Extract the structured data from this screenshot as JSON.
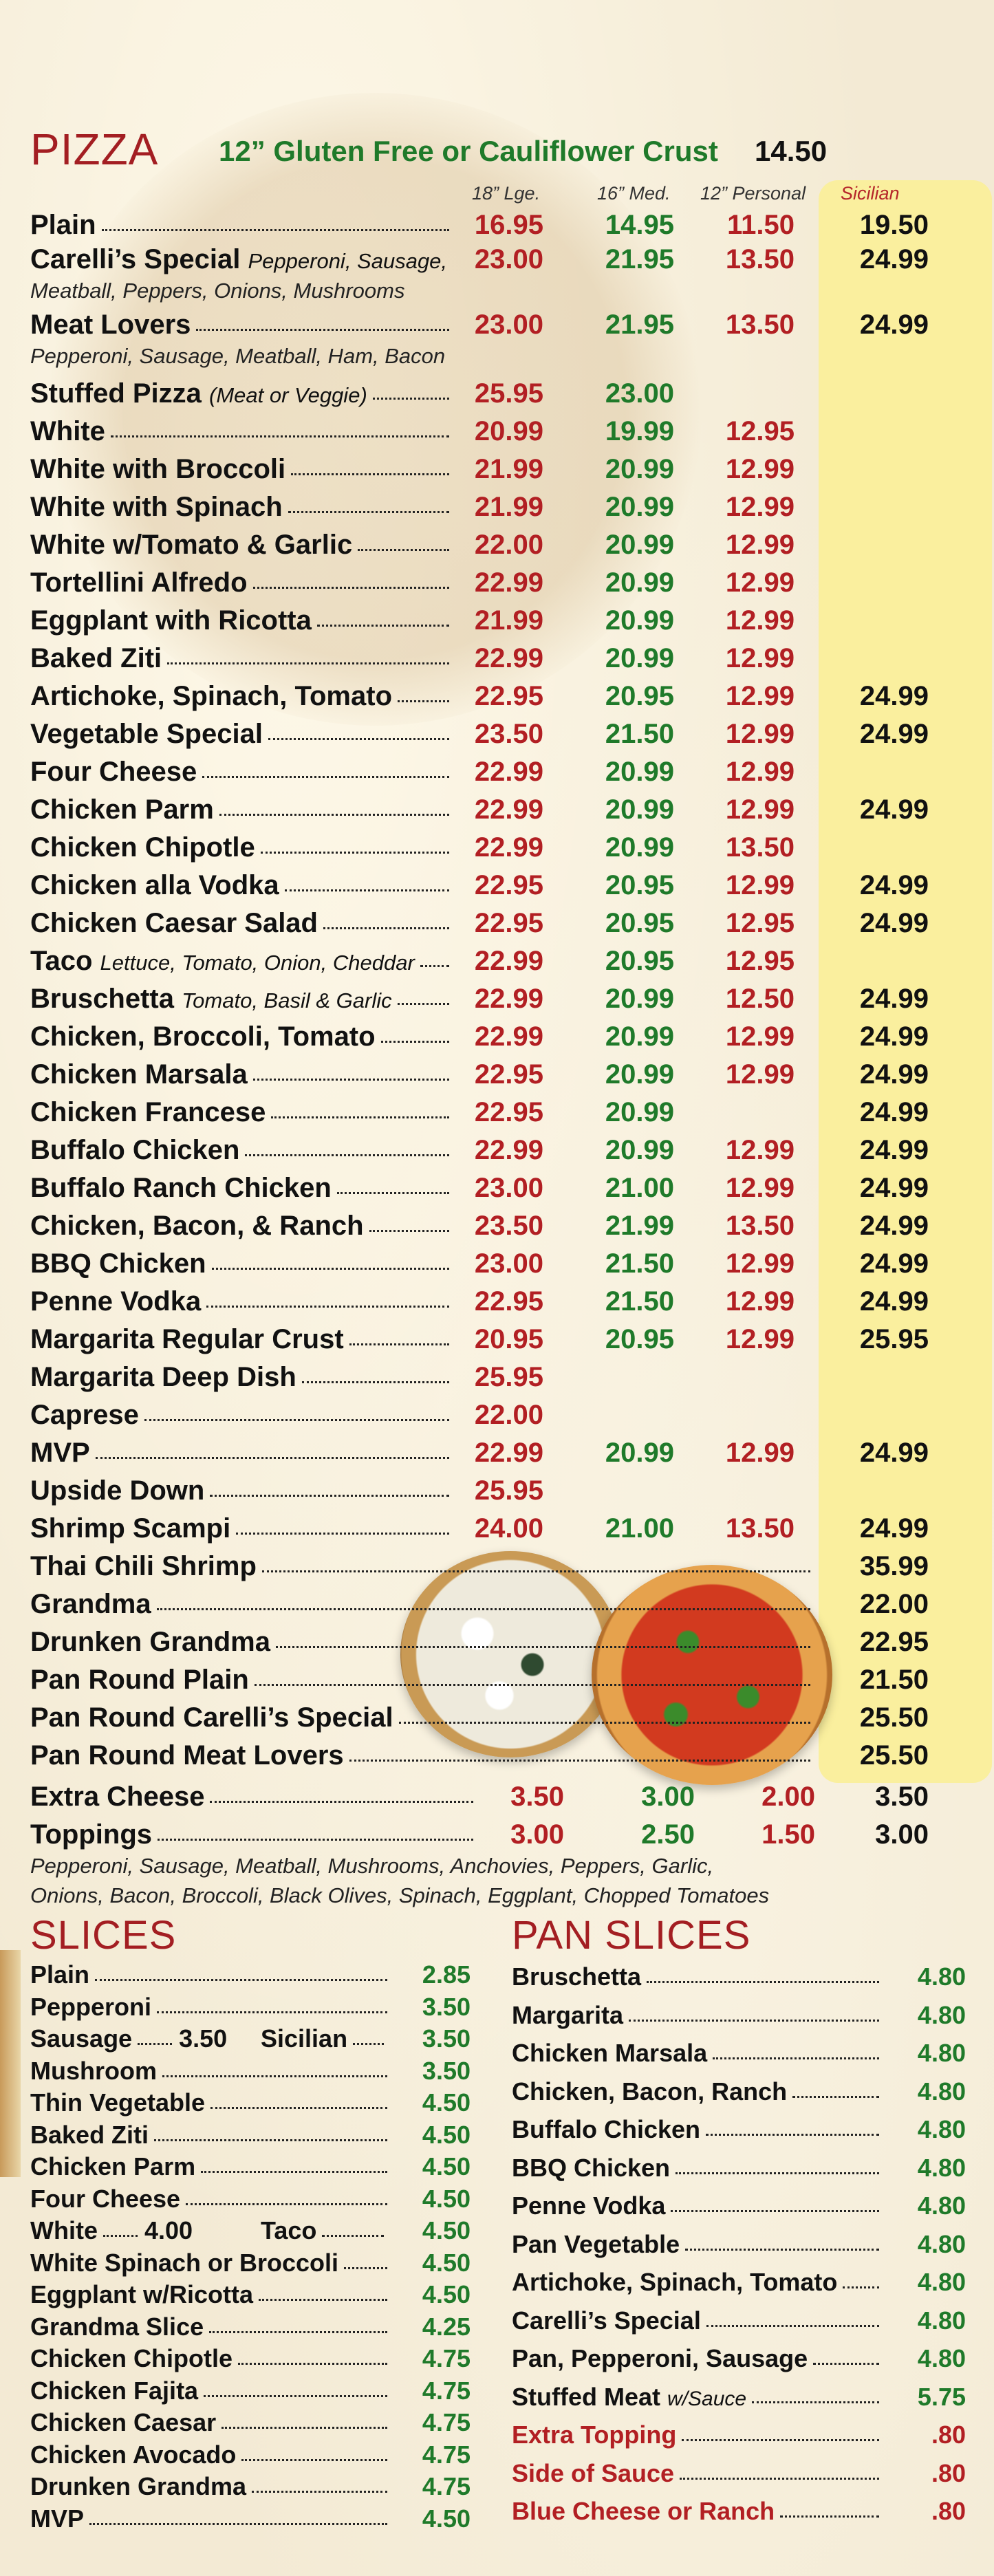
{
  "pizza": {
    "heading": "PIZZA",
    "gluten_free": "12” Gluten Free or Cauliflower Crust",
    "gluten_free_price": "14.50",
    "col_large": "18” Lge.",
    "col_medium": "16” Med.",
    "col_personal": "12” Personal",
    "col_sicilian": "Sicilian",
    "items": [
      {
        "name": "Plain",
        "note": "",
        "lg": "16.95",
        "md": "14.95",
        "ps": "11.50",
        "sic": "19.50"
      },
      {
        "name": "Carelli’s Special",
        "note": "Pepperoni, Sausage,",
        "lg": "23.00",
        "md": "21.95",
        "ps": "13.50",
        "sic": "24.99"
      },
      {
        "name": "Meat Lovers",
        "note": "",
        "lg": "23.00",
        "md": "21.95",
        "ps": "13.50",
        "sic": "24.99"
      },
      {
        "name": "Stuffed Pizza",
        "note": "(Meat or Veggie)",
        "lg": "25.95",
        "md": "23.00",
        "ps": "",
        "sic": ""
      },
      {
        "name": "White",
        "note": "",
        "lg": "20.99",
        "md": "19.99",
        "ps": "12.95",
        "sic": ""
      },
      {
        "name": "White with Broccoli",
        "note": "",
        "lg": "21.99",
        "md": "20.99",
        "ps": "12.99",
        "sic": ""
      },
      {
        "name": "White with Spinach",
        "note": "",
        "lg": "21.99",
        "md": "20.99",
        "ps": "12.99",
        "sic": ""
      },
      {
        "name": "White w/Tomato & Garlic",
        "note": "",
        "lg": "22.00",
        "md": "20.99",
        "ps": "12.99",
        "sic": ""
      },
      {
        "name": "Tortellini Alfredo",
        "note": "",
        "lg": "22.99",
        "md": "20.99",
        "ps": "12.99",
        "sic": ""
      },
      {
        "name": "Eggplant with Ricotta",
        "note": "",
        "lg": "21.99",
        "md": "20.99",
        "ps": "12.99",
        "sic": ""
      },
      {
        "name": "Baked Ziti",
        "note": "",
        "lg": "22.99",
        "md": "20.99",
        "ps": "12.99",
        "sic": ""
      },
      {
        "name": "Artichoke, Spinach, Tomato",
        "note": "",
        "lg": "22.95",
        "md": "20.95",
        "ps": "12.99",
        "sic": "24.99"
      },
      {
        "name": "Vegetable Special",
        "note": "",
        "lg": "23.50",
        "md": "21.50",
        "ps": "12.99",
        "sic": "24.99"
      },
      {
        "name": "Four Cheese",
        "note": "",
        "lg": "22.99",
        "md": "20.99",
        "ps": "12.99",
        "sic": ""
      },
      {
        "name": "Chicken Parm",
        "note": "",
        "lg": "22.99",
        "md": "20.99",
        "ps": "12.99",
        "sic": "24.99"
      },
      {
        "name": "Chicken Chipotle",
        "note": "",
        "lg": "22.99",
        "md": "20.99",
        "ps": "13.50",
        "sic": ""
      },
      {
        "name": "Chicken alla Vodka",
        "note": "",
        "lg": "22.95",
        "md": "20.95",
        "ps": "12.99",
        "sic": "24.99"
      },
      {
        "name": "Chicken Caesar Salad",
        "note": "",
        "lg": "22.95",
        "md": "20.95",
        "ps": "12.95",
        "sic": "24.99"
      },
      {
        "name": "Taco",
        "note": "Lettuce, Tomato, Onion, Cheddar",
        "lg": "22.99",
        "md": "20.95",
        "ps": "12.95",
        "sic": ""
      },
      {
        "name": "Bruschetta",
        "note": "Tomato, Basil & Garlic",
        "lg": "22.99",
        "md": "20.99",
        "ps": "12.50",
        "sic": "24.99"
      },
      {
        "name": "Chicken, Broccoli, Tomato",
        "note": "",
        "lg": "22.99",
        "md": "20.99",
        "ps": "12.99",
        "sic": "24.99"
      },
      {
        "name": "Chicken Marsala",
        "note": "",
        "lg": "22.95",
        "md": "20.99",
        "ps": "12.99",
        "sic": "24.99"
      },
      {
        "name": "Chicken Francese",
        "note": "",
        "lg": "22.95",
        "md": "20.99",
        "ps": "",
        "sic": "24.99"
      },
      {
        "name": "Buffalo Chicken",
        "note": "",
        "lg": "22.99",
        "md": "20.99",
        "ps": "12.99",
        "sic": "24.99"
      },
      {
        "name": "Buffalo Ranch Chicken",
        "note": "",
        "lg": "23.00",
        "md": "21.00",
        "ps": "12.99",
        "sic": "24.99"
      },
      {
        "name": "Chicken, Bacon, & Ranch",
        "note": "",
        "lg": "23.50",
        "md": "21.99",
        "ps": "13.50",
        "sic": "24.99"
      },
      {
        "name": "BBQ Chicken",
        "note": "",
        "lg": "23.00",
        "md": "21.50",
        "ps": "12.99",
        "sic": "24.99"
      },
      {
        "name": "Penne Vodka",
        "note": "",
        "lg": "22.95",
        "md": "21.50",
        "ps": "12.99",
        "sic": "24.99"
      },
      {
        "name": "Margarita Regular Crust",
        "note": "",
        "lg": "20.95",
        "md": "20.95",
        "ps": "12.99",
        "sic": "25.95"
      },
      {
        "name": "Margarita Deep Dish",
        "note": "",
        "lg": "25.95",
        "md": "",
        "ps": "",
        "sic": ""
      },
      {
        "name": "Caprese",
        "note": "",
        "lg": "22.00",
        "md": "",
        "ps": "",
        "sic": ""
      },
      {
        "name": "MVP",
        "note": "",
        "lg": "22.99",
        "md": "20.99",
        "ps": "12.99",
        "sic": "24.99"
      },
      {
        "name": "Upside Down",
        "note": "",
        "lg": "25.95",
        "md": "",
        "ps": "",
        "sic": ""
      },
      {
        "name": "Shrimp Scampi",
        "note": "",
        "lg": "24.00",
        "md": "21.00",
        "ps": "13.50",
        "sic": "24.99"
      },
      {
        "name": "Thai Chili Shrimp",
        "note": "",
        "lg": "",
        "md": "",
        "ps": "",
        "sic": "35.99"
      },
      {
        "name": "Grandma",
        "note": "",
        "lg": "",
        "md": "",
        "ps": "",
        "sic": "22.00"
      },
      {
        "name": "Drunken Grandma",
        "note": "",
        "lg": "",
        "md": "",
        "ps": "",
        "sic": "22.95"
      },
      {
        "name": "Pan Round Plain",
        "note": "",
        "lg": "",
        "md": "",
        "ps": "",
        "sic": "21.50"
      },
      {
        "name": "Pan Round Carelli’s Special",
        "note": "",
        "lg": "",
        "md": "",
        "ps": "",
        "sic": "25.50"
      },
      {
        "name": "Pan Round Meat Lovers",
        "note": "",
        "lg": "",
        "md": "",
        "ps": "",
        "sic": "25.50"
      }
    ],
    "carelli_desc": "Meatball, Peppers, Onions, Mushrooms",
    "meat_lovers_desc": "Pepperoni, Sausage, Meatball, Ham, Bacon",
    "extras": [
      {
        "name": "Extra Cheese",
        "lg": "3.50",
        "md": "3.00",
        "ps": "2.00",
        "sic": "3.50"
      },
      {
        "name": "Toppings",
        "lg": "3.00",
        "md": "2.50",
        "ps": "1.50",
        "sic": "3.00"
      }
    ],
    "toppings_desc_1": "Pepperoni, Sausage, Meatball, Mushrooms, Anchovies, Peppers, Garlic,",
    "toppings_desc_2": "Onions, Bacon, Broccoli, Black Olives, Spinach, Eggplant, Chopped Tomatoes"
  },
  "slices": {
    "heading": "SLICES",
    "items": [
      {
        "name": "Plain",
        "price": "2.85"
      },
      {
        "name": "Pepperoni",
        "price": "3.50"
      },
      {
        "name": "Sausage",
        "price": "3.50",
        "name2": "Sicilian",
        "price2": "3.50"
      },
      {
        "name": "Mushroom",
        "price": "3.50"
      },
      {
        "name": "Thin Vegetable",
        "price": "4.50"
      },
      {
        "name": "Baked Ziti",
        "price": "4.50"
      },
      {
        "name": "Chicken Parm",
        "price": "4.50"
      },
      {
        "name": "Four Cheese",
        "price": "4.50"
      },
      {
        "name": "White",
        "price": "4.00",
        "name2": "Taco",
        "price2": "4.50"
      },
      {
        "name": "White Spinach or Broccoli",
        "price": "4.50"
      },
      {
        "name": "Eggplant w/Ricotta",
        "price": "4.50"
      },
      {
        "name": "Grandma Slice",
        "price": "4.25"
      },
      {
        "name": "Chicken Chipotle",
        "price": "4.75"
      },
      {
        "name": "Chicken Fajita",
        "price": "4.75"
      },
      {
        "name": "Chicken Caesar",
        "price": "4.75"
      },
      {
        "name": "Chicken Avocado",
        "price": "4.75"
      },
      {
        "name": "Drunken Grandma",
        "price": "4.75"
      },
      {
        "name": "MVP",
        "price": "4.50"
      }
    ]
  },
  "pan_slices": {
    "heading": "PAN SLICES",
    "items": [
      {
        "name": "Bruschetta",
        "note": "",
        "price": "4.80"
      },
      {
        "name": "Margarita",
        "note": "",
        "price": "4.80"
      },
      {
        "name": "Chicken Marsala",
        "note": "",
        "price": "4.80"
      },
      {
        "name": "Chicken, Bacon, Ranch",
        "note": "",
        "price": "4.80"
      },
      {
        "name": "Buffalo Chicken",
        "note": "",
        "price": "4.80"
      },
      {
        "name": "BBQ Chicken",
        "note": "",
        "price": "4.80"
      },
      {
        "name": "Penne Vodka",
        "note": "",
        "price": "4.80"
      },
      {
        "name": "Pan Vegetable",
        "note": "",
        "price": "4.80"
      },
      {
        "name": "Artichoke, Spinach, Tomato",
        "note": "",
        "price": "4.80"
      },
      {
        "name": "Carelli’s Special",
        "note": "",
        "price": "4.80"
      },
      {
        "name": "Pan, Pepperoni, Sausage",
        "note": "",
        "price": "4.80"
      },
      {
        "name": "Stuffed Meat",
        "note": "w/Sauce",
        "price": "5.75"
      },
      {
        "name": "Extra Topping",
        "note": "",
        "price": ".80"
      },
      {
        "name": "Side of Sauce",
        "note": "",
        "price": ".80"
      },
      {
        "name": "Blue Cheese or Ranch",
        "note": "",
        "price": ".80"
      }
    ]
  },
  "colors": {
    "red": "#b21f23",
    "green": "#1f7a2a",
    "sicilian_band": "#faef9e"
  }
}
